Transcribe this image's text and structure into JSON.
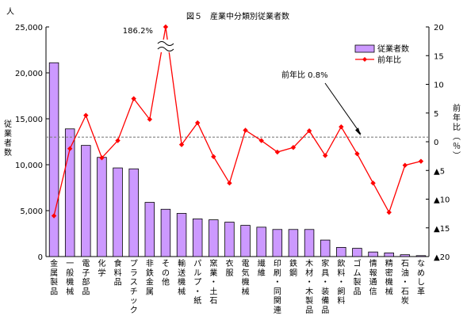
{
  "chart_data": {
    "type": "bar",
    "title": "図５　産業中分類別従業者数",
    "left_unit": "人",
    "ylabel_left": "従業者数",
    "ylabel_right": "前年比（％）",
    "ylim_left": [
      0,
      25000
    ],
    "yticks_left": [
      "0",
      "5,000",
      "10,000",
      "15,000",
      "20,000",
      "25,000"
    ],
    "ylim_right": [
      -20,
      20
    ],
    "yticks_right": [
      "▲20",
      "▲15",
      "▲10",
      "▲5",
      "0",
      "5",
      "10",
      "15",
      "20"
    ],
    "categories": [
      "金属製品",
      "一般機械",
      "電子部品",
      "化学",
      "食料品",
      "プラスチック",
      "非鉄金属",
      "その他",
      "輸送機械",
      "パルプ・紙",
      "窯業・土石",
      "衣服",
      "電気機械",
      "繊維",
      "印刷・同関連",
      "鉄鋼",
      "木材・木製品",
      "家具・装備品",
      "飲料・飼料",
      "ゴム製品",
      "情報通信",
      "精密機械",
      "石油・石炭",
      "なめし革"
    ],
    "series": [
      {
        "name": "従業者数",
        "type": "bar",
        "axis": "left",
        "color": "#cc99ff",
        "values": [
          21100,
          13900,
          12100,
          10800,
          9650,
          9550,
          5900,
          5150,
          4700,
          4100,
          4000,
          3750,
          3400,
          3200,
          2950,
          2950,
          2950,
          1800,
          1000,
          900,
          500,
          400,
          200,
          100
        ]
      },
      {
        "name": "前年比",
        "type": "line",
        "axis": "right",
        "color": "#ff0000",
        "values": [
          -12.9,
          -1.2,
          4.6,
          -2.8,
          0.2,
          7.5,
          3.9,
          20.0,
          -0.5,
          3.3,
          -2.6,
          -7.2,
          2.0,
          0.2,
          -1.8,
          -1.0,
          1.9,
          -2.4,
          2.6,
          -2.1,
          -7.2,
          -12.3,
          -4.1,
          -3.4
        ]
      }
    ],
    "baseline": {
      "value": 0.8,
      "label": "前年比 0.8%",
      "style": "dashed",
      "color": "#808080"
    },
    "annotations": [
      {
        "text": "186.2%",
        "category": "その他",
        "note": "axis break"
      }
    ],
    "legend": {
      "position": "top-right",
      "entries": [
        "従業者数",
        "前年比"
      ]
    },
    "grid": false
  }
}
